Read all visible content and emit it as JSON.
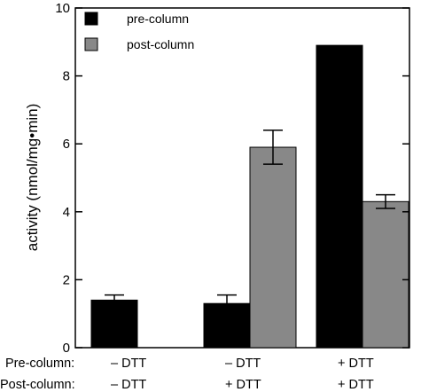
{
  "chart_data": {
    "type": "bar",
    "ylabel": "activity   (nmol/mg•min)",
    "ylim": [
      0,
      10
    ],
    "yticks": [
      0,
      2,
      4,
      6,
      8,
      10
    ],
    "grid": false,
    "legend_position": "top-left",
    "categories": [
      "1",
      "2",
      "3"
    ],
    "series": [
      {
        "name": "pre-column",
        "color": "#000000",
        "values": [
          1.4,
          1.3,
          8.9
        ],
        "errors": [
          0.15,
          0.25,
          0
        ]
      },
      {
        "name": "post-column",
        "color": "#888888",
        "values": [
          0,
          5.9,
          4.3
        ],
        "errors": [
          0,
          0.5,
          0.2
        ]
      }
    ],
    "condition_rows": [
      {
        "label": "Pre-column:",
        "values": [
          "– DTT",
          "– DTT",
          "+ DTT"
        ]
      },
      {
        "label": "Post-column:",
        "values": [
          "– DTT",
          "+ DTT",
          "+ DTT"
        ]
      }
    ]
  }
}
